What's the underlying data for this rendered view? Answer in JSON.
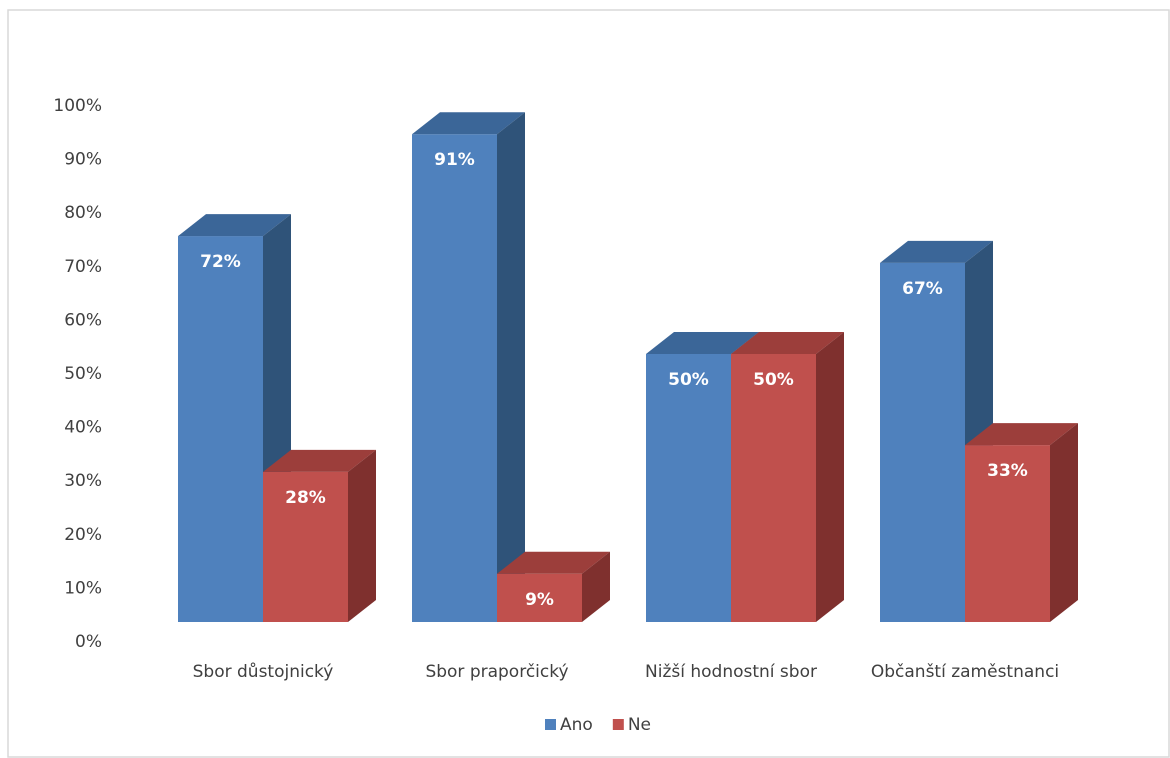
{
  "chart_data": {
    "type": "bar3d",
    "categories": [
      "Sbor důstojnický",
      "Sbor praporčický",
      "Nižší hodnostní sbor",
      "Občanští zaměstnanci"
    ],
    "series": [
      {
        "name": "Ano",
        "color": "#4f81bd",
        "side": "#2f5379",
        "top": "#3b6698",
        "values": [
          72,
          91,
          50,
          67
        ],
        "value_labels": [
          "72%",
          "91%",
          "50%",
          "67%"
        ]
      },
      {
        "name": "Ne",
        "color": "#c0504d",
        "side": "#7f302e",
        "top": "#9c3e3b",
        "values": [
          28,
          9,
          50,
          33
        ],
        "value_labels": [
          "28%",
          "9%",
          "50%",
          "33%"
        ]
      }
    ],
    "ylim": [
      0,
      100
    ],
    "yticks": [
      {
        "value": 0,
        "label": "0%"
      },
      {
        "value": 10,
        "label": "10%"
      },
      {
        "value": 20,
        "label": "20%"
      },
      {
        "value": 30,
        "label": "30%"
      },
      {
        "value": 40,
        "label": "40%"
      },
      {
        "value": 50,
        "label": "50%"
      },
      {
        "value": 60,
        "label": "60%"
      },
      {
        "value": 70,
        "label": "70%"
      },
      {
        "value": 80,
        "label": "80%"
      },
      {
        "value": 90,
        "label": "90%"
      },
      {
        "value": 100,
        "label": "100%"
      }
    ],
    "legend": "bottom"
  }
}
